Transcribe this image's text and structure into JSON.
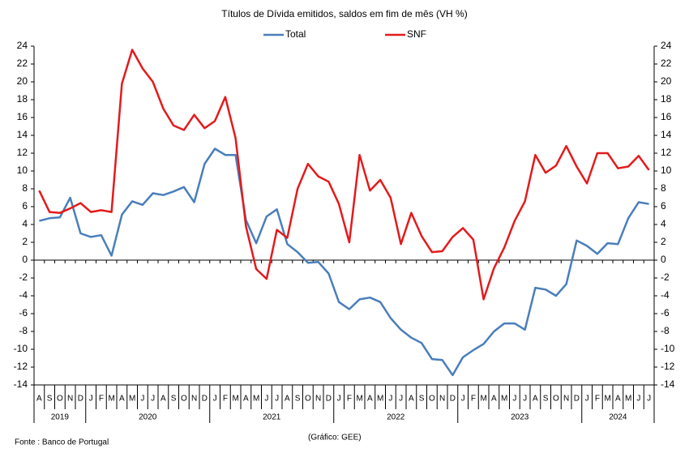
{
  "chart_data": {
    "type": "line",
    "title": "Títulos de Dívida emitidos, saldos em fim de mês  (VH %)",
    "categories": [
      "A",
      "S",
      "O",
      "N",
      "D",
      "J",
      "F",
      "M",
      "A",
      "M",
      "J",
      "J",
      "A",
      "S",
      "O",
      "N",
      "D",
      "J",
      "F",
      "M",
      "A",
      "M",
      "J",
      "J",
      "A",
      "S",
      "O",
      "N",
      "D",
      "J",
      "F",
      "M",
      "A",
      "M",
      "J",
      "J",
      "A",
      "S",
      "O",
      "N",
      "D",
      "J",
      "F",
      "M",
      "A",
      "M",
      "J",
      "J",
      "A",
      "S",
      "O",
      "N",
      "D",
      "J",
      "F",
      "M",
      "A",
      "M",
      "J",
      "J"
    ],
    "years": [
      "2019",
      "2020",
      "2021",
      "2022",
      "2023",
      "2024"
    ],
    "series": [
      {
        "name": "Total",
        "color": "#4a7ebb",
        "values": [
          4.4,
          4.7,
          4.8,
          7.0,
          3.0,
          2.6,
          2.8,
          0.5,
          5.1,
          6.6,
          6.2,
          7.5,
          7.3,
          7.7,
          8.2,
          6.5,
          10.8,
          12.5,
          11.8,
          11.8,
          4.5,
          1.9,
          4.9,
          5.7,
          1.8,
          0.9,
          -0.3,
          -0.2,
          -1.5,
          -4.7,
          -5.5,
          -4.4,
          -4.2,
          -4.7,
          -6.5,
          -7.8,
          -8.7,
          -9.3,
          -11.1,
          -11.2,
          -12.9,
          -10.9,
          -10.1,
          -9.4,
          -8.0,
          -7.1,
          -7.1,
          -7.8,
          -3.1,
          -3.3,
          -4.0,
          -2.7,
          2.2,
          1.6,
          0.7,
          1.9,
          1.8,
          4.7,
          6.5,
          6.3
        ]
      },
      {
        "name": "SNF",
        "color": "#e41a1c",
        "values": [
          7.8,
          5.4,
          5.3,
          5.8,
          6.4,
          5.4,
          5.6,
          5.4,
          19.8,
          23.6,
          21.5,
          20.0,
          17.0,
          15.1,
          14.6,
          16.3,
          14.8,
          15.6,
          18.3,
          13.7,
          3.8,
          -1.0,
          -2.1,
          3.4,
          2.5,
          8.0,
          10.8,
          9.4,
          8.8,
          6.3,
          2.0,
          11.8,
          7.8,
          9.0,
          7.0,
          1.8,
          5.3,
          2.7,
          0.9,
          1.0,
          2.6,
          3.6,
          2.3,
          -4.4,
          -0.9,
          1.4,
          4.4,
          6.6,
          11.8,
          9.8,
          10.6,
          12.8,
          10.5,
          8.6,
          12.0,
          12.0,
          10.3,
          10.5,
          11.7,
          10.1
        ]
      }
    ],
    "ylim": [
      -14,
      24
    ],
    "yticks": [
      -14,
      -12,
      -10,
      -8,
      -6,
      -4,
      -2,
      0,
      2,
      4,
      6,
      8,
      10,
      12,
      14,
      16,
      18,
      20,
      22,
      24
    ],
    "y2lim": [
      -14,
      24
    ],
    "y2ticks": [
      -14,
      -12,
      -10,
      -8,
      -6,
      -4,
      -2,
      0,
      2,
      4,
      6,
      8,
      10,
      12,
      14,
      16,
      18,
      20,
      22,
      24
    ],
    "grid": false,
    "legend": "top",
    "source": "Fonte : Banco de Portugal",
    "credit": "(Gráfico: GEE)"
  }
}
